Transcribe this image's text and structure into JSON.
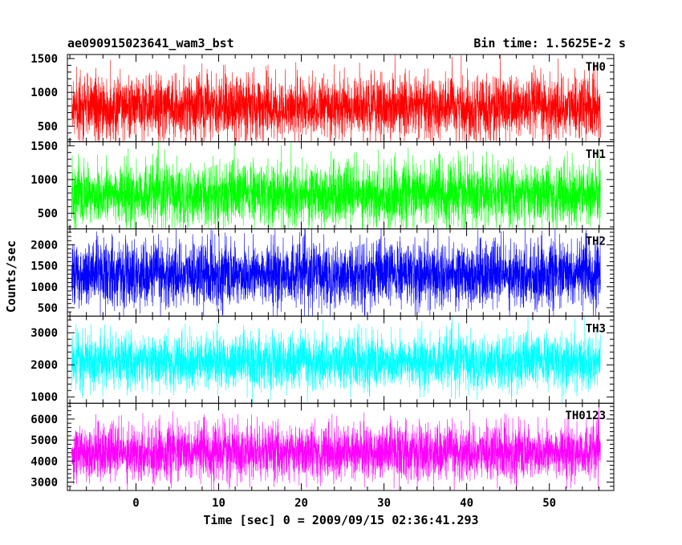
{
  "chart_data": {
    "type": "line",
    "title": "ae090915023641_wam3_bst",
    "subtitle": "Bin time: 1.5625E-2 s",
    "xlabel": "Time [sec] 0 = 2009/09/15 02:36:41.293",
    "ylabel": "Counts/sec",
    "xlim": [
      -8.3,
      57.8
    ],
    "xticks": [
      0,
      10,
      20,
      30,
      40,
      50
    ],
    "xticklabels": [
      "0",
      "10",
      "20",
      "30",
      "40",
      "50"
    ],
    "data_x_range": [
      -7.8,
      56.2
    ],
    "bin_time": 0.015625,
    "panels": [
      {
        "name": "TH0",
        "color": "#ff0000",
        "ylim": [
          270,
          1560
        ],
        "yticks": [
          500,
          1000,
          1500
        ],
        "yticklabels": [
          "500",
          "1000",
          "1500"
        ],
        "mean": 780,
        "spread": 230,
        "max": 1640,
        "min": 120
      },
      {
        "name": "TH1",
        "color": "#00ff00",
        "ylim": [
          270,
          1560
        ],
        "yticks": [
          500,
          1000,
          1500
        ],
        "yticklabels": [
          "500",
          "1000",
          "1500"
        ],
        "mean": 780,
        "spread": 230,
        "max": 1640,
        "min": 120
      },
      {
        "name": "TH2",
        "color": "#0000ff",
        "ylim": [
          300,
          2380
        ],
        "yticks": [
          500,
          1000,
          1500,
          2000
        ],
        "yticklabels": [
          "500",
          "1000",
          "1500",
          "2000"
        ],
        "mean": 1300,
        "spread": 380,
        "max": 2480,
        "min": 80
      },
      {
        "name": "TH3",
        "color": "#00ffff",
        "ylim": [
          800,
          3520
        ],
        "yticks": [
          1000,
          2000,
          3000
        ],
        "yticklabels": [
          "1000",
          "2000",
          "3000"
        ],
        "mean": 2100,
        "spread": 420,
        "max": 3500,
        "min": 760
      },
      {
        "name": "TH0123",
        "color": "#ff00ff",
        "ylim": [
          2600,
          6750
        ],
        "yticks": [
          3000,
          4000,
          5000,
          6000
        ],
        "yticklabels": [
          "3000",
          "4000",
          "5000",
          "6000"
        ],
        "mean": 4420,
        "spread": 650,
        "max": 6800,
        "min": 2400
      }
    ]
  }
}
